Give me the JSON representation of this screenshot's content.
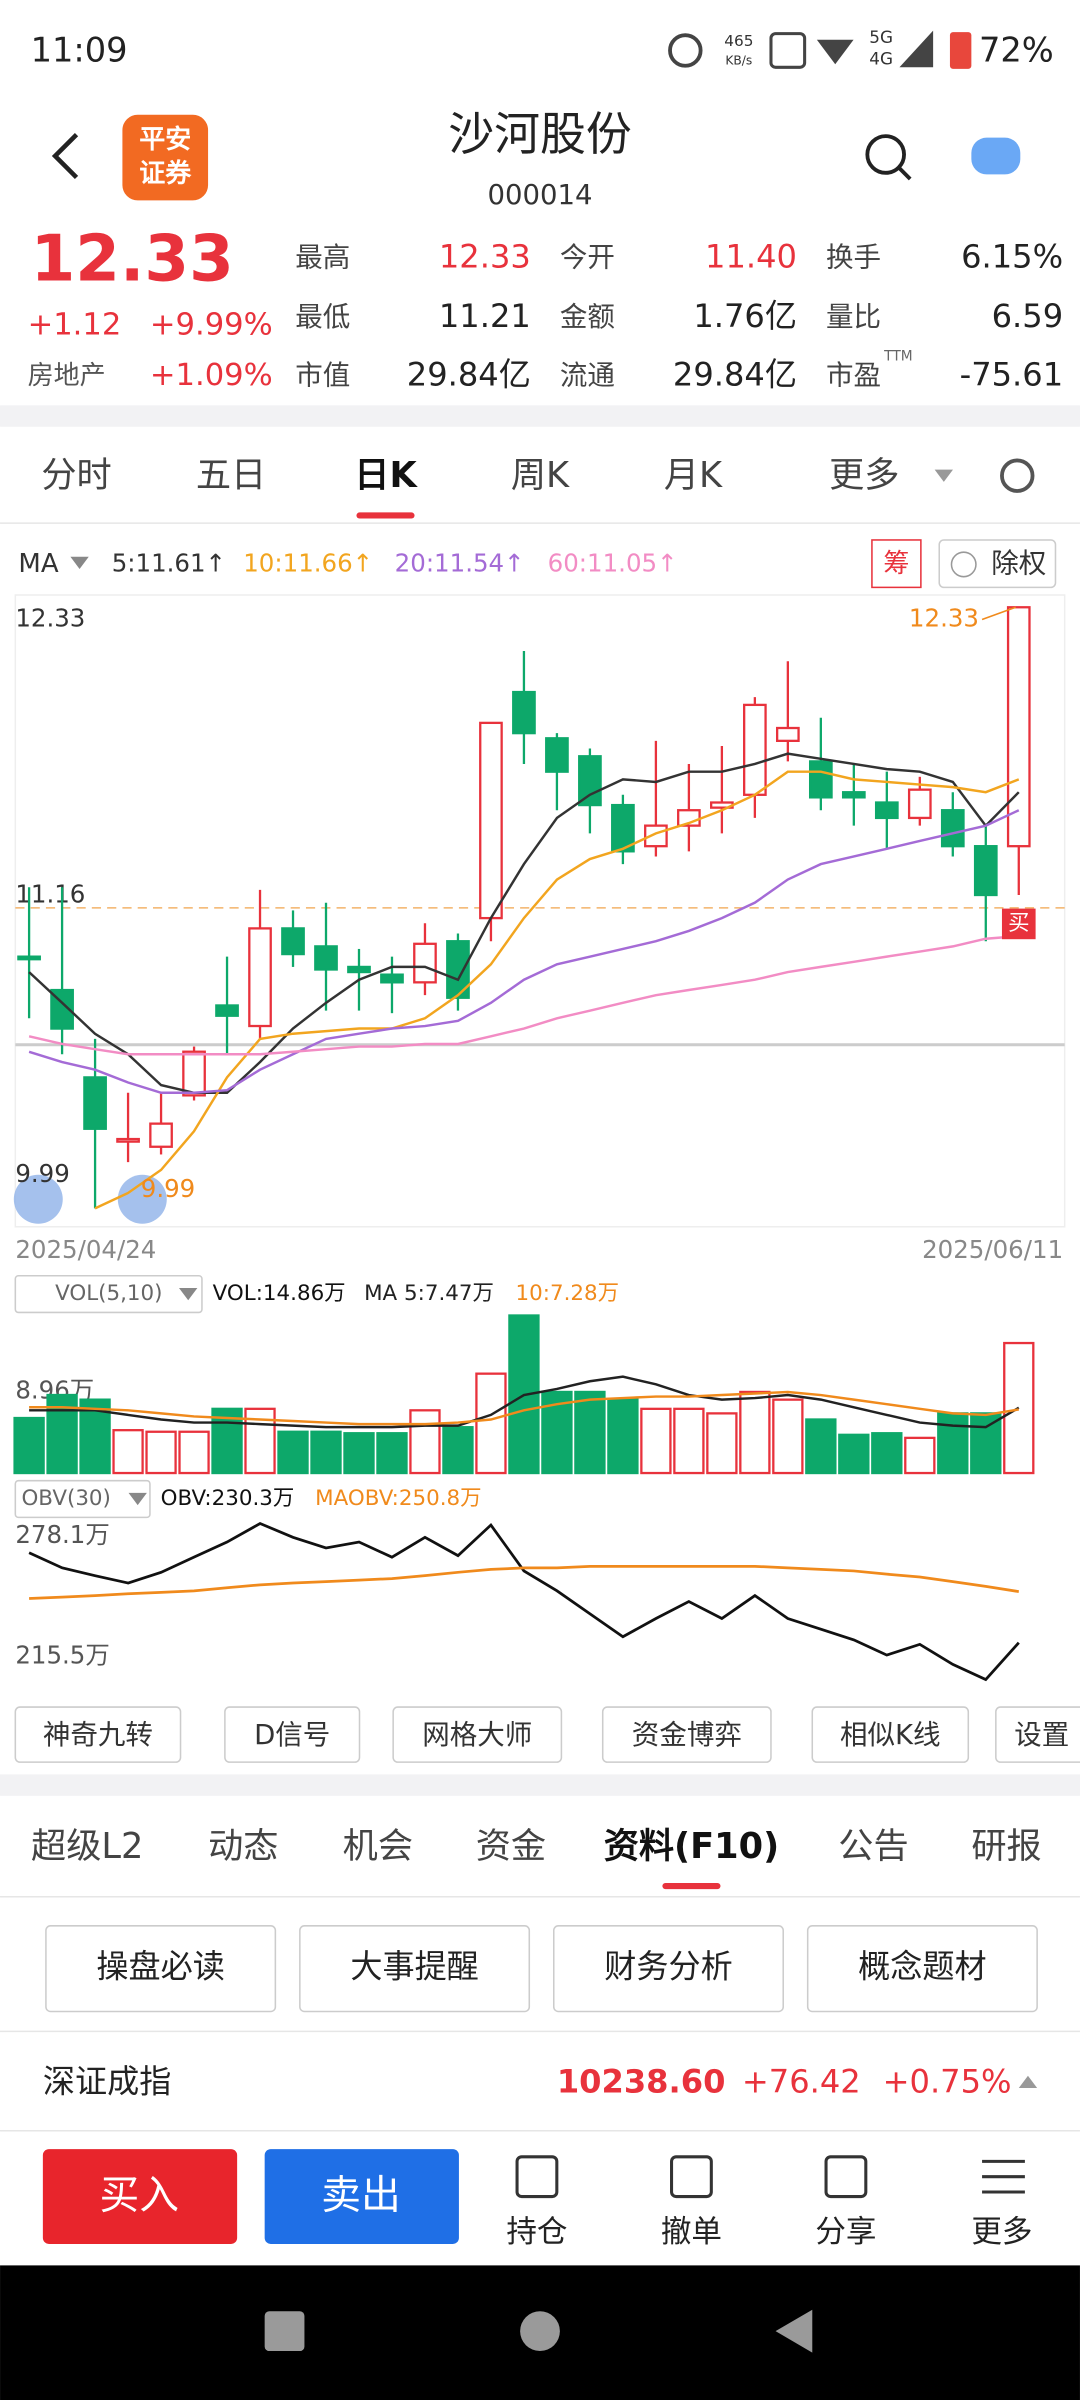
{
  "status_bar": {
    "time": "11:09",
    "speed": "465",
    "speed_unit": "KB/s",
    "net_top": "5G",
    "net_bottom": "4G",
    "battery": "72%"
  },
  "header": {
    "logo_top": "平安",
    "logo_bottom": "证券",
    "title": "沙河股份",
    "code": "000014"
  },
  "quote": {
    "price": "12.33",
    "change": "+1.12",
    "change_pct": "+9.99%",
    "sector": "房地产",
    "sector_pct": "+1.09%",
    "fields": [
      {
        "label": "最高",
        "value": "12.33"
      },
      {
        "label": "今开",
        "value": "11.40"
      },
      {
        "label": "换手",
        "value": "6.15%"
      },
      {
        "label": "最低",
        "value": "11.21"
      },
      {
        "label": "金额",
        "value": "1.76亿"
      },
      {
        "label": "量比",
        "value": "6.59"
      },
      {
        "label": "市值",
        "value": "29.84亿"
      },
      {
        "label": "流通",
        "value": "29.84亿"
      },
      {
        "label": "市盈",
        "value": "-75.61",
        "sup": "TTM"
      }
    ]
  },
  "period_tabs": [
    "分时",
    "五日",
    "日K",
    "周K",
    "月K",
    "更多"
  ],
  "period_active": 2,
  "kline": {
    "type": "candlestick",
    "ma_label": "MA",
    "chip_tag": "筹",
    "rights_tag": "除权",
    "ylim": [
      9.99,
      12.33
    ],
    "yticks": [
      12.33,
      11.16,
      9.99
    ],
    "max_label": "12.33",
    "min_label": "9.99",
    "x_start": "2025/04/24",
    "x_end": "2025/06/11",
    "signal": "买",
    "up_color": "#e8323c",
    "down_color": "#0da86a",
    "open": [
      10.97,
      10.84,
      10.5,
      10.25,
      10.23,
      10.43,
      10.78,
      10.7,
      11.08,
      11.01,
      10.93,
      10.9,
      10.87,
      11.03,
      11.12,
      12.0,
      11.82,
      11.75,
      11.56,
      11.4,
      11.48,
      11.55,
      11.6,
      11.81,
      11.73,
      11.61,
      11.57,
      11.51,
      11.54,
      11.4,
      11.4
    ],
    "high": [
      11.24,
      11.24,
      10.65,
      10.44,
      10.44,
      10.62,
      10.97,
      11.23,
      11.15,
      11.18,
      11.0,
      10.97,
      11.1,
      11.06,
      11.88,
      12.16,
      11.84,
      11.78,
      11.6,
      11.81,
      11.72,
      11.79,
      11.98,
      12.12,
      11.9,
      11.72,
      11.69,
      11.67,
      11.61,
      11.48,
      12.33
    ],
    "low": [
      10.73,
      10.59,
      9.99,
      10.17,
      10.2,
      10.41,
      10.59,
      10.65,
      10.93,
      10.76,
      10.76,
      10.75,
      10.82,
      10.76,
      11.03,
      11.72,
      11.54,
      11.45,
      11.33,
      11.36,
      11.38,
      11.45,
      11.51,
      11.73,
      11.54,
      11.48,
      11.39,
      11.48,
      11.36,
      11.03,
      11.21
    ],
    "close": [
      10.96,
      10.69,
      10.3,
      10.26,
      10.32,
      10.6,
      10.74,
      11.08,
      10.98,
      10.92,
      10.91,
      10.87,
      11.02,
      10.81,
      11.88,
      11.84,
      11.69,
      11.56,
      11.38,
      11.48,
      11.54,
      11.57,
      11.95,
      11.86,
      11.59,
      11.59,
      11.51,
      11.62,
      11.4,
      11.21,
      12.33
    ],
    "ma": [
      {
        "name": "5:11.61↑",
        "color": "#333333",
        "values": [
          10.91,
          10.79,
          10.67,
          10.59,
          10.47,
          10.44,
          10.44,
          10.56,
          10.69,
          10.79,
          10.88,
          10.93,
          10.93,
          10.88,
          11.12,
          11.33,
          11.51,
          11.6,
          11.66,
          11.65,
          11.69,
          11.69,
          11.72,
          11.76,
          11.74,
          11.72,
          11.7,
          11.69,
          11.65,
          11.48,
          11.61
        ]
      },
      {
        "name": "10:11.66↑",
        "color": "#f2a51f",
        "values": [
          null,
          null,
          9.99,
          10.05,
          10.14,
          10.29,
          10.5,
          10.65,
          10.67,
          10.68,
          10.69,
          10.69,
          10.73,
          10.82,
          10.94,
          11.12,
          11.27,
          11.35,
          11.39,
          11.45,
          11.49,
          11.54,
          11.6,
          11.69,
          11.69,
          11.66,
          11.65,
          11.64,
          11.63,
          11.61,
          11.66
        ]
      },
      {
        "name": "20:11.54↑",
        "color": "#a46bd6",
        "values": [
          10.6,
          10.56,
          10.53,
          10.48,
          10.44,
          10.44,
          10.45,
          10.53,
          10.59,
          10.65,
          10.67,
          10.69,
          10.7,
          10.72,
          10.79,
          10.88,
          10.94,
          10.97,
          11.0,
          11.03,
          11.07,
          11.12,
          11.18,
          11.27,
          11.33,
          11.36,
          11.39,
          11.42,
          11.45,
          11.48,
          11.54
        ]
      },
      {
        "name": "60:11.05↑",
        "color": "#f28cc4",
        "values": [
          10.66,
          10.63,
          10.61,
          10.59,
          10.59,
          10.59,
          10.59,
          10.59,
          10.6,
          10.61,
          10.62,
          10.62,
          10.63,
          10.63,
          10.66,
          10.69,
          10.73,
          10.76,
          10.79,
          10.82,
          10.84,
          10.86,
          10.88,
          10.91,
          10.93,
          10.95,
          10.97,
          10.99,
          11.01,
          11.04,
          11.05
        ]
      }
    ]
  },
  "volume": {
    "indicator": "VOL(5,10)",
    "value_text": "VOL:14.86万",
    "ytick": {
      "value": 8.96,
      "label": "8.96万"
    },
    "values": [
      6.29,
      8.92,
      8.39,
      4.9,
      4.72,
      4.72,
      7.34,
      7.34,
      4.72,
      4.72,
      4.55,
      4.55,
      7.17,
      5.24,
      11.36,
      18.01,
      9.27,
      9.27,
      8.39,
      7.34,
      7.34,
      6.82,
      9.27,
      8.39,
      6.12,
      4.37,
      4.55,
      4.02,
      6.82,
      6.82,
      14.86
    ],
    "ma": [
      {
        "name": "MA 5:7.47万",
        "color": "#222222",
        "values": [
          7.17,
          7.17,
          7.17,
          6.64,
          6.12,
          5.77,
          5.77,
          5.59,
          5.42,
          5.24,
          5.24,
          5.24,
          5.42,
          5.42,
          6.64,
          8.92,
          9.62,
          10.49,
          11.01,
          10.14,
          8.92,
          8.39,
          8.57,
          8.92,
          8.39,
          7.52,
          6.64,
          5.77,
          5.42,
          5.24,
          7.47
        ]
      },
      {
        "name": "10:7.28万",
        "color": "#f08a1c",
        "values": [
          7.52,
          7.52,
          7.34,
          7.17,
          6.82,
          6.47,
          6.29,
          6.12,
          5.94,
          5.77,
          5.59,
          5.59,
          5.59,
          5.77,
          6.12,
          7.17,
          7.87,
          8.39,
          8.57,
          8.74,
          8.74,
          8.92,
          9.09,
          9.27,
          8.92,
          8.39,
          7.87,
          7.34,
          6.82,
          6.64,
          7.28
        ]
      }
    ]
  },
  "obv": {
    "indicator": "OBV(30)",
    "yticks": [
      {
        "value": 278.1,
        "label": "278.1万"
      },
      {
        "value": 215.5,
        "label": "215.5万"
      }
    ],
    "series": [
      {
        "name": "OBV:230.3万",
        "color": "#111111",
        "values": [
          266.4,
          260.3,
          257.2,
          254.2,
          258.5,
          264.6,
          270.7,
          278.1,
          272.6,
          268.3,
          270.7,
          264.6,
          272.6,
          265.2,
          277.5,
          259.1,
          251.1,
          241.9,
          232.7,
          240.0,
          246.8,
          240.0,
          249.2,
          240.0,
          235.7,
          231.4,
          225.3,
          229.6,
          221.6,
          215.5,
          230.3
        ]
      },
      {
        "name": "MAOBV:250.8万",
        "color": "#f08a1c",
        "values": [
          248.0,
          248.6,
          249.2,
          249.9,
          250.5,
          251.1,
          252.3,
          253.5,
          254.2,
          254.8,
          255.4,
          256.0,
          257.2,
          258.5,
          259.7,
          260.3,
          260.3,
          260.9,
          260.9,
          260.9,
          260.9,
          260.9,
          260.9,
          260.3,
          259.7,
          259.1,
          257.8,
          256.6,
          254.8,
          252.9,
          250.8
        ]
      }
    ]
  },
  "tools": [
    "神奇九转",
    "D信号",
    "网格大师",
    "资金博弈",
    "相似K线",
    "设置"
  ],
  "sub_tabs": [
    "超级L2",
    "动态",
    "机会",
    "资金",
    "资料(F10)",
    "公告",
    "研报"
  ],
  "sub_active": 4,
  "f10": [
    "操盘必读",
    "大事提醒",
    "财务分析",
    "概念题材"
  ],
  "index": {
    "name": "深证成指",
    "value": "10238.60",
    "change": "+76.42",
    "pct": "+0.75%"
  },
  "bottom": {
    "buy": "买入",
    "sell": "卖出",
    "actions": [
      "持仓",
      "撤单",
      "分享",
      "更多"
    ]
  }
}
